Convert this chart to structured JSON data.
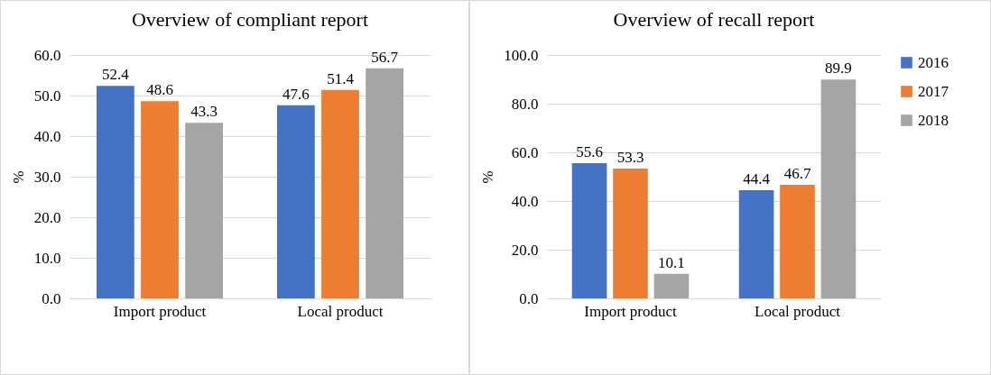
{
  "chart_data": [
    {
      "type": "bar",
      "title": "Overview of compliant report",
      "ylabel": "%",
      "categories": [
        "Import product",
        "Local product"
      ],
      "series": [
        {
          "color": "#4472c4",
          "values": [
            52.4,
            47.6
          ]
        },
        {
          "color": "#ed7d31",
          "values": [
            48.6,
            51.4
          ]
        },
        {
          "color": "#a5a5a5",
          "values": [
            43.3,
            56.7
          ]
        }
      ],
      "ylim": [
        0,
        60
      ],
      "yticks": [
        {
          "value": 0,
          "label": "0.0"
        },
        {
          "value": 10,
          "label": "10.0"
        },
        {
          "value": 20,
          "label": "20.0"
        },
        {
          "value": 30,
          "label": "30.0"
        },
        {
          "value": 40,
          "label": "40.0"
        },
        {
          "value": 50,
          "label": "50.0"
        },
        {
          "value": 60,
          "label": "60.0"
        }
      ],
      "grid": "y",
      "data_labels": true,
      "legend": false
    },
    {
      "type": "bar",
      "title": "Overview of recall report",
      "ylabel": "%",
      "categories": [
        "Import product",
        "Local product"
      ],
      "series": [
        {
          "name": "2016",
          "color": "#4472c4",
          "values": [
            55.6,
            44.4
          ]
        },
        {
          "name": "2017",
          "color": "#ed7d31",
          "values": [
            53.3,
            46.7
          ]
        },
        {
          "name": "2018",
          "color": "#a5a5a5",
          "values": [
            10.1,
            89.9
          ]
        }
      ],
      "ylim": [
        0,
        100
      ],
      "yticks": [
        {
          "value": 0,
          "label": "0.0"
        },
        {
          "value": 20,
          "label": "20.0"
        },
        {
          "value": 40,
          "label": "40.0"
        },
        {
          "value": 60,
          "label": "60.0"
        },
        {
          "value": 80,
          "label": "80.0"
        },
        {
          "value": 100,
          "label": "100.0"
        }
      ],
      "grid": "y",
      "data_labels": true,
      "legend": "right"
    }
  ]
}
